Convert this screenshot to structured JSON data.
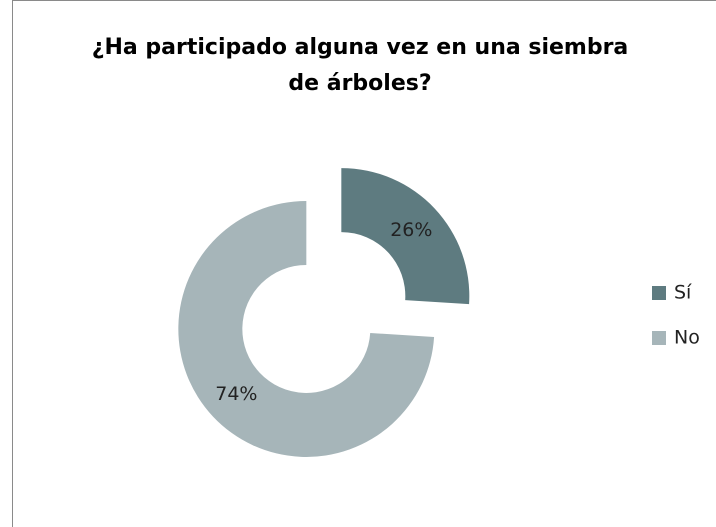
{
  "chart_data": {
    "type": "donut",
    "title": "¿Ha participado alguna vez en una siembra de árboles?",
    "categories": [
      "Sí",
      "No"
    ],
    "values": [
      26,
      74
    ],
    "value_labels": [
      "26%",
      "74%"
    ],
    "colors": [
      "#5e7b80",
      "#a6b5b9"
    ],
    "legend": "right"
  }
}
